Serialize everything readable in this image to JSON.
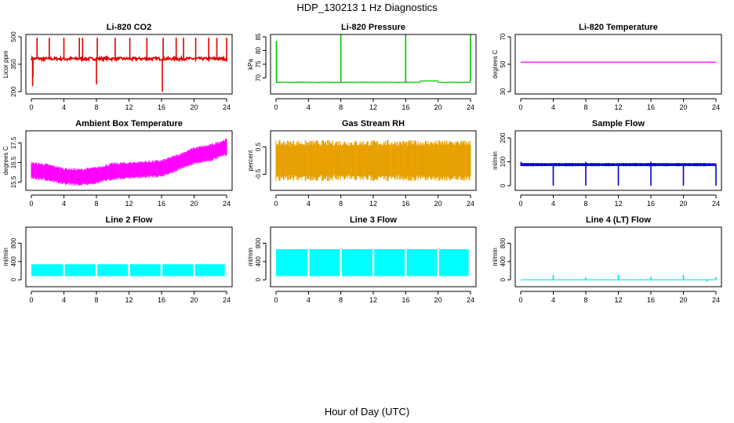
{
  "page": {
    "title": "HDP_130213  1 Hz Diagnostics",
    "x_axis_title": "Hour of Day (UTC)"
  },
  "chart_data": [
    {
      "type": "line",
      "title": "Li-820 CO2",
      "ylabel": "Licor ppm",
      "color": "#e00000",
      "xlim": [
        0,
        24
      ],
      "ylim": [
        200,
        500
      ],
      "x_ticks": [
        0,
        4,
        8,
        12,
        16,
        20,
        24
      ],
      "y_ticks": [
        200,
        350,
        500
      ],
      "y_tick_labels": [
        "200",
        "350",
        "500"
      ],
      "pattern": "spiky",
      "base": 380,
      "noise": 8,
      "upper": [
        [
          0.7,
          495
        ],
        [
          2.2,
          495
        ],
        [
          4.0,
          495
        ],
        [
          5.9,
          495
        ],
        [
          6.3,
          495
        ],
        [
          8.1,
          495
        ],
        [
          10.3,
          495
        ],
        [
          12.1,
          495
        ],
        [
          14.2,
          495
        ],
        [
          16.2,
          495
        ],
        [
          17.8,
          495
        ],
        [
          18.7,
          495
        ],
        [
          20.2,
          495
        ],
        [
          21.8,
          495
        ],
        [
          22.8,
          495
        ],
        [
          24.0,
          495
        ]
      ],
      "lower": [
        [
          0.15,
          230
        ],
        [
          0.2,
          280
        ],
        [
          1.5,
          365
        ],
        [
          4.4,
          365
        ],
        [
          8.0,
          240
        ],
        [
          12.4,
          365
        ],
        [
          16.1,
          200
        ],
        [
          18.2,
          365
        ],
        [
          20.2,
          365
        ],
        [
          24.0,
          365
        ]
      ]
    },
    {
      "type": "line",
      "title": "Li-820 Pressure",
      "ylabel": "kPa",
      "color": "#00c000",
      "xlim": [
        0,
        24
      ],
      "ylim": [
        65,
        85
      ],
      "x_ticks": [
        0,
        4,
        8,
        12,
        16,
        20,
        24
      ],
      "y_ticks": [
        70,
        75,
        80,
        85
      ],
      "y_tick_labels": [
        "70",
        "75",
        "80",
        "85"
      ],
      "pattern": "pressure",
      "base": 68.4,
      "noise": 0.1,
      "upper": [
        [
          0.05,
          83.5
        ],
        [
          8.0,
          86
        ],
        [
          16.0,
          86
        ],
        [
          24.0,
          86
        ]
      ],
      "lower": [],
      "bump": [
        17.8,
        20.0,
        68.9
      ]
    },
    {
      "type": "line",
      "title": "Li-820 Temperature",
      "ylabel": "degrees C",
      "color": "#ff00ff",
      "xlim": [
        0,
        24
      ],
      "ylim": [
        30,
        70
      ],
      "x_ticks": [
        0,
        4,
        8,
        12,
        16,
        20,
        24
      ],
      "y_ticks": [
        30,
        50,
        70
      ],
      "y_tick_labels": [
        "30",
        "50",
        "70"
      ],
      "pattern": "flat",
      "base": 51.5,
      "noise": 0,
      "upper": [],
      "lower": []
    },
    {
      "type": "line",
      "title": "Ambient Box Temperature",
      "ylabel": "degrees C",
      "color": "#ff00ff",
      "xlim": [
        0,
        24
      ],
      "ylim": [
        15.2,
        18.0
      ],
      "x_ticks": [
        0,
        4,
        8,
        12,
        16,
        20,
        24
      ],
      "y_ticks": [
        15.5,
        16.5,
        17.5
      ],
      "y_tick_labels": [
        "15.5",
        "16.5",
        "17.5"
      ],
      "pattern": "band",
      "centers": [
        [
          0,
          16.1
        ],
        [
          2,
          16.0
        ],
        [
          4,
          15.8
        ],
        [
          6,
          15.75
        ],
        [
          8,
          15.85
        ],
        [
          10,
          16.05
        ],
        [
          12,
          16.1
        ],
        [
          14,
          16.15
        ],
        [
          16,
          16.2
        ],
        [
          18,
          16.5
        ],
        [
          20,
          16.85
        ],
        [
          22,
          17.0
        ],
        [
          24,
          17.3
        ]
      ],
      "half_width": 0.45,
      "upper": [],
      "lower": []
    },
    {
      "type": "line",
      "title": "Gas Stream RH",
      "ylabel": "percent",
      "color": "#e8a000",
      "xlim": [
        0,
        24
      ],
      "ylim": [
        -1.0,
        1.0
      ],
      "x_ticks": [
        0,
        4,
        8,
        12,
        16,
        20,
        24
      ],
      "y_ticks": [
        -0.5,
        0.5
      ],
      "y_tick_labels": [
        "-0.5",
        "0.5"
      ],
      "pattern": "band",
      "centers": [
        [
          0,
          0.0
        ],
        [
          24,
          0.0
        ]
      ],
      "half_width": 0.75,
      "upper": [],
      "lower": []
    },
    {
      "type": "line",
      "title": "Sample Flow",
      "ylabel": "ml/min",
      "color": "#0000e0",
      "xlim": [
        0,
        24
      ],
      "ylim": [
        -10,
        220
      ],
      "x_ticks": [
        0,
        4,
        8,
        12,
        16,
        20,
        24
      ],
      "y_ticks": [
        0,
        100,
        200
      ],
      "y_tick_labels": [
        "0",
        "100",
        "200"
      ],
      "pattern": "band",
      "centers": [
        [
          0,
          88
        ],
        [
          24,
          88
        ]
      ],
      "half_width": 7,
      "upper": [
        [
          0.05,
          100
        ],
        [
          8.0,
          100
        ],
        [
          16.0,
          100
        ]
      ],
      "lower": [
        [
          4.0,
          0
        ],
        [
          8.0,
          0
        ],
        [
          12.0,
          0
        ],
        [
          16.0,
          0
        ],
        [
          20.0,
          0
        ],
        [
          24.0,
          0
        ]
      ]
    },
    {
      "type": "area",
      "title": "Line 2 Flow",
      "ylabel": "ml/min",
      "color": "#00ffff",
      "xlim": [
        0,
        24
      ],
      "ylim": [
        -100,
        1100
      ],
      "x_ticks": [
        0,
        4,
        8,
        12,
        16,
        20,
        24
      ],
      "y_ticks": [
        0,
        400,
        800
      ],
      "y_tick_labels": [
        "0",
        "400",
        "800"
      ],
      "pattern": "block",
      "band_low": 80,
      "band_high": 340,
      "gaps": [
        4,
        8,
        12,
        16,
        20
      ],
      "end": 23.9,
      "upper": [],
      "lower": []
    },
    {
      "type": "area",
      "title": "Line 3 Flow",
      "ylabel": "ml/min",
      "color": "#00ffff",
      "xlim": [
        0,
        24
      ],
      "ylim": [
        -100,
        1100
      ],
      "x_ticks": [
        0,
        4,
        8,
        12,
        16,
        20,
        24
      ],
      "y_ticks": [
        0,
        400,
        800
      ],
      "y_tick_labels": [
        "0",
        "400",
        "800"
      ],
      "pattern": "block",
      "band_low": 80,
      "band_high": 670,
      "gaps": [
        4,
        8,
        12,
        16,
        20
      ],
      "end": 23.9,
      "upper": [],
      "lower": []
    },
    {
      "type": "line",
      "title": "Line 4 (LT) Flow",
      "ylabel": "ml/min",
      "color": "#00e0e0",
      "xlim": [
        0,
        24
      ],
      "ylim": [
        -100,
        1100
      ],
      "x_ticks": [
        0,
        4,
        8,
        12,
        16,
        20,
        24
      ],
      "y_ticks": [
        0,
        400,
        800
      ],
      "y_tick_labels": [
        "0",
        "400",
        "800"
      ],
      "pattern": "flat",
      "base": 0,
      "noise": 0,
      "upper": [
        [
          4.0,
          110
        ],
        [
          8.0,
          60
        ],
        [
          12.0,
          110
        ],
        [
          16.0,
          60
        ],
        [
          20.0,
          110
        ],
        [
          24.0,
          60
        ]
      ],
      "lower": [
        [
          22.9,
          -40
        ]
      ]
    }
  ]
}
